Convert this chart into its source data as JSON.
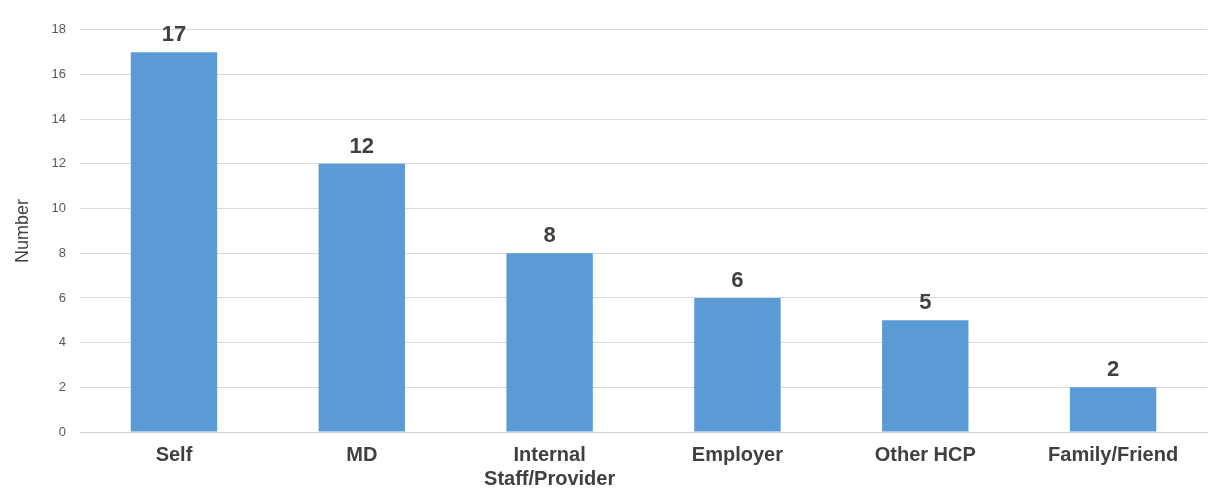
{
  "chart_data": {
    "type": "bar",
    "ylabel": "Number",
    "categories": [
      "Self",
      "MD",
      "Internal Staff/Provider",
      "Employer",
      "Other HCP",
      "Family/Friend"
    ],
    "values": [
      17,
      12,
      8,
      6,
      5,
      2
    ],
    "color": "#5b9bd5",
    "ylim": [
      0,
      18
    ],
    "yticks": [
      0,
      2,
      4,
      6,
      8,
      10,
      12,
      14,
      16,
      18
    ],
    "grid": "y",
    "legend": false,
    "data_labels": true
  }
}
